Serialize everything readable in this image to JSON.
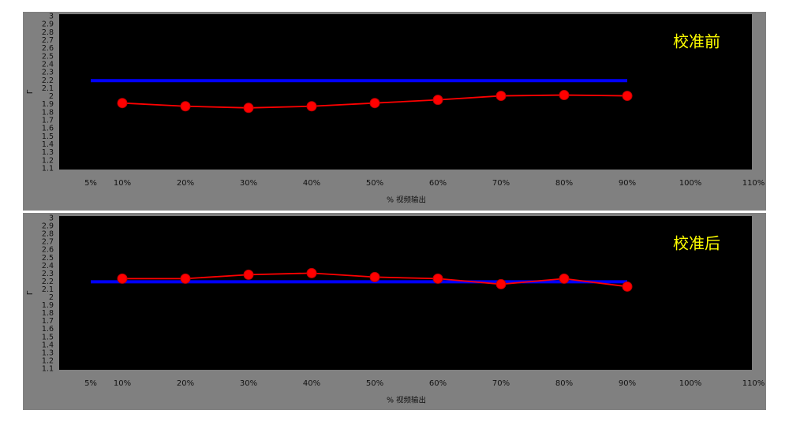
{
  "chart_data": [
    {
      "type": "line",
      "annotation": "校准前",
      "xlabel": "% 视频输出",
      "ylabel": "Γ",
      "xlim": [
        0,
        110
      ],
      "ylim": [
        1.1,
        3
      ],
      "xticks": [
        {
          "value": 5,
          "label": "5%"
        },
        {
          "value": 10,
          "label": "10%"
        },
        {
          "value": 20,
          "label": "20%"
        },
        {
          "value": 30,
          "label": "30%"
        },
        {
          "value": 40,
          "label": "40%"
        },
        {
          "value": 50,
          "label": "50%"
        },
        {
          "value": 60,
          "label": "60%"
        },
        {
          "value": 70,
          "label": "70%"
        },
        {
          "value": 80,
          "label": "80%"
        },
        {
          "value": 90,
          "label": "90%"
        },
        {
          "value": 100,
          "label": "100%"
        },
        {
          "value": 110,
          "label": "110%"
        }
      ],
      "yticks": [
        1.1,
        1.2,
        1.3,
        1.4,
        1.5,
        1.6,
        1.7,
        1.8,
        1.9,
        2,
        2.1,
        2.2,
        2.3,
        2.4,
        2.5,
        2.6,
        2.7,
        2.8,
        2.9,
        3
      ],
      "series": [
        {
          "color": "#0000ff",
          "x": [
            5,
            90
          ],
          "values": [
            2.2,
            2.2
          ]
        },
        {
          "color": "#ff0000",
          "markers": true,
          "x": [
            10,
            20,
            30,
            40,
            50,
            60,
            70,
            80,
            90
          ],
          "values": [
            1.92,
            1.88,
            1.86,
            1.88,
            1.92,
            1.96,
            2.01,
            2.02,
            2.01
          ]
        }
      ]
    },
    {
      "type": "line",
      "annotation": "校准后",
      "xlabel": "% 视频输出",
      "ylabel": "Γ",
      "xlim": [
        0,
        110
      ],
      "ylim": [
        1.1,
        3
      ],
      "xticks": [
        {
          "value": 5,
          "label": "5%"
        },
        {
          "value": 10,
          "label": "10%"
        },
        {
          "value": 20,
          "label": "20%"
        },
        {
          "value": 30,
          "label": "30%"
        },
        {
          "value": 40,
          "label": "40%"
        },
        {
          "value": 50,
          "label": "50%"
        },
        {
          "value": 60,
          "label": "60%"
        },
        {
          "value": 70,
          "label": "70%"
        },
        {
          "value": 80,
          "label": "80%"
        },
        {
          "value": 90,
          "label": "90%"
        },
        {
          "value": 100,
          "label": "100%"
        },
        {
          "value": 110,
          "label": "110%"
        }
      ],
      "yticks": [
        1.1,
        1.2,
        1.3,
        1.4,
        1.5,
        1.6,
        1.7,
        1.8,
        1.9,
        2,
        2.1,
        2.2,
        2.3,
        2.4,
        2.5,
        2.6,
        2.7,
        2.8,
        2.9,
        3
      ],
      "series": [
        {
          "color": "#0000ff",
          "x": [
            5,
            90
          ],
          "values": [
            2.2,
            2.2
          ]
        },
        {
          "color": "#ff0000",
          "markers": true,
          "x": [
            10,
            20,
            30,
            40,
            50,
            60,
            70,
            80,
            90
          ],
          "values": [
            2.24,
            2.24,
            2.29,
            2.31,
            2.26,
            2.24,
            2.17,
            2.24,
            2.14
          ]
        }
      ]
    }
  ]
}
